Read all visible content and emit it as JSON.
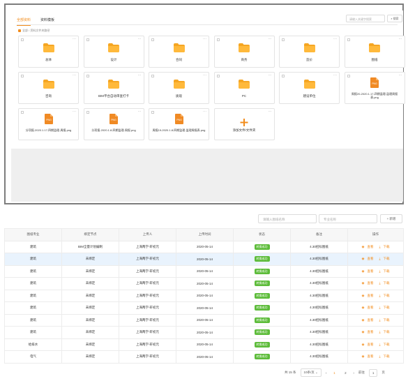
{
  "top": {
    "tabs": [
      "全部资料",
      "资料模板"
    ],
    "search_placeholder": "请输入关键字搜索",
    "search_button": "搜索",
    "breadcrumb": "全部 / 资料文件夹路径",
    "folders": [
      {
        "name": "总体",
        "type": "folder"
      },
      {
        "name": "设计",
        "type": "folder"
      },
      {
        "name": "合同",
        "type": "folder"
      },
      {
        "name": "商务",
        "type": "folder"
      },
      {
        "name": "造价",
        "type": "folder"
      },
      {
        "name": "图纸",
        "type": "folder"
      },
      {
        "name": "咨询",
        "type": "folder"
      },
      {
        "name": "BIM平台自动审查打卡",
        "type": "folder"
      },
      {
        "name": "质观",
        "type": "folder"
      },
      {
        "name": "PC",
        "type": "folder"
      },
      {
        "name": "建设单位",
        "type": "folder"
      },
      {
        "name": "周报20-2020.1.17-四期监理-监理周报表.png",
        "type": "png"
      },
      {
        "name": "分项报-2020.1.17-四期监理-周报.png",
        "type": "png"
      },
      {
        "name": "分项报-2020.1.8-四期监理-周报.png",
        "type": "png"
      },
      {
        "name": "周报19-2020.1.8-四期监理-监理周报表.png",
        "type": "png"
      },
      {
        "name": "添加文件/文件夹",
        "type": "add"
      }
    ],
    "png_label": "PNG"
  },
  "table": {
    "search1_placeholder": "请输入图纸名称",
    "search2_placeholder": "专业名称",
    "add_button": "新增",
    "headers": [
      "图纸专业",
      "绑定节点",
      "上传人",
      "上传时间",
      "状态",
      "备注",
      "操作"
    ],
    "rows": [
      [
        "建筑",
        "BIM全量计划编制",
        "上海两学-轩初元",
        "2020-05-14",
        "转换成功",
        "4.30招标图纸"
      ],
      [
        "建筑",
        "未绑定",
        "上海两学-轩初元",
        "2020-05-14",
        "转换成功",
        "4.30招标图纸"
      ],
      [
        "建筑",
        "未绑定",
        "上海两学-轩初元",
        "2020-05-14",
        "转换成功",
        "4.30招标图纸"
      ],
      [
        "建筑",
        "未绑定",
        "上海两学-轩初元",
        "2020-05-14",
        "转换成功",
        "4.30招标图纸"
      ],
      [
        "建筑",
        "未绑定",
        "上海两学-轩初元",
        "2020-05-14",
        "转换成功",
        "4.30招标图纸"
      ],
      [
        "建筑",
        "未绑定",
        "上海两学-轩初元",
        "2020-05-14",
        "转换成功",
        "4.30招标图纸"
      ],
      [
        "建筑",
        "未绑定",
        "上海两学-轩初元",
        "2020-05-14",
        "转换成功",
        "4.30招标图纸"
      ],
      [
        "建筑",
        "未绑定",
        "上海两学-轩初元",
        "2020-05-14",
        "转换成功",
        "4.30招标图纸"
      ],
      [
        "给排水",
        "未绑定",
        "上海两学-轩初元",
        "2020-05-14",
        "转换成功",
        "4.30招标图纸"
      ],
      [
        "电气",
        "未绑定",
        "上海两学-轩初元",
        "2020-05-14",
        "转换成功",
        "4.30招标图纸"
      ]
    ],
    "selected_row": 1,
    "action_view": "查看",
    "action_download": "下载",
    "pager": {
      "total": "共 15 条",
      "page_size": "10条/页",
      "prev": "‹",
      "pages": [
        "1",
        "2"
      ],
      "next": "›",
      "goto_label": "前往",
      "goto_value": "1",
      "page_unit": "页"
    }
  },
  "colors": {
    "accent": "#f28c1c",
    "success": "#5dbc3a",
    "selected_row": "#e9f3fd"
  }
}
